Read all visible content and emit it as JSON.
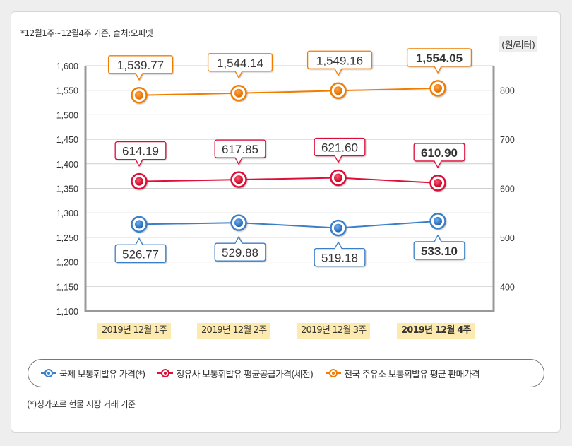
{
  "note_top": "*12월1주~12월4주 기준, 출처:오피넷",
  "unit_label": "(원/리터)",
  "note_bottom": "(*)싱가포르 현물 시장 거래 기준",
  "colors": {
    "blue": "#3a7fc8",
    "red": "#dd1039",
    "orange": "#f07d00",
    "grid": "#cfcfcf",
    "axis": "#999999",
    "category_bg": "#fdeaae"
  },
  "chart_data": {
    "type": "line",
    "categories": [
      "2019년 12월 1주",
      "2019년 12월 2주",
      "2019년 12월 3주",
      "2019년 12월 4주"
    ],
    "bold_category_index": 3,
    "left_axis": {
      "ylim": [
        1100,
        1600
      ],
      "ticks": [
        "1,600",
        "1,550",
        "1,500",
        "1,450",
        "1,400",
        "1,350",
        "1,300",
        "1,250",
        "1,200",
        "1,150",
        "1,100"
      ],
      "tick_values": [
        1600,
        1550,
        1500,
        1450,
        1400,
        1350,
        1300,
        1250,
        1200,
        1150,
        1100
      ]
    },
    "right_axis": {
      "ylim": [
        350,
        850
      ],
      "ticks": [
        "800",
        "700",
        "600",
        "500",
        "400"
      ],
      "tick_values": [
        800,
        700,
        600,
        500,
        400
      ]
    },
    "grid": true,
    "legend_position": "bottom",
    "series": [
      {
        "name": "국제 보통휘발유 가격(*)",
        "color_key": "blue",
        "axis": "right",
        "values": [
          526.77,
          529.88,
          519.18,
          533.1
        ],
        "labels": [
          "526.77",
          "529.88",
          "519.18",
          "533.10"
        ],
        "label_position": "below"
      },
      {
        "name": "정유사 보통휘발유 평균공급가격(세전)",
        "color_key": "red",
        "axis": "right",
        "values": [
          614.19,
          617.85,
          621.6,
          610.9
        ],
        "labels": [
          "614.19",
          "617.85",
          "621.60",
          "610.90"
        ],
        "label_position": "above"
      },
      {
        "name": "전국 주유소 보통휘발유 평균 판매가격",
        "color_key": "orange",
        "axis": "left",
        "values": [
          1539.77,
          1544.14,
          1549.16,
          1554.05
        ],
        "labels": [
          "1,539.77",
          "1,544.14",
          "1,549.16",
          "1,554.05"
        ],
        "label_position": "above"
      }
    ]
  }
}
